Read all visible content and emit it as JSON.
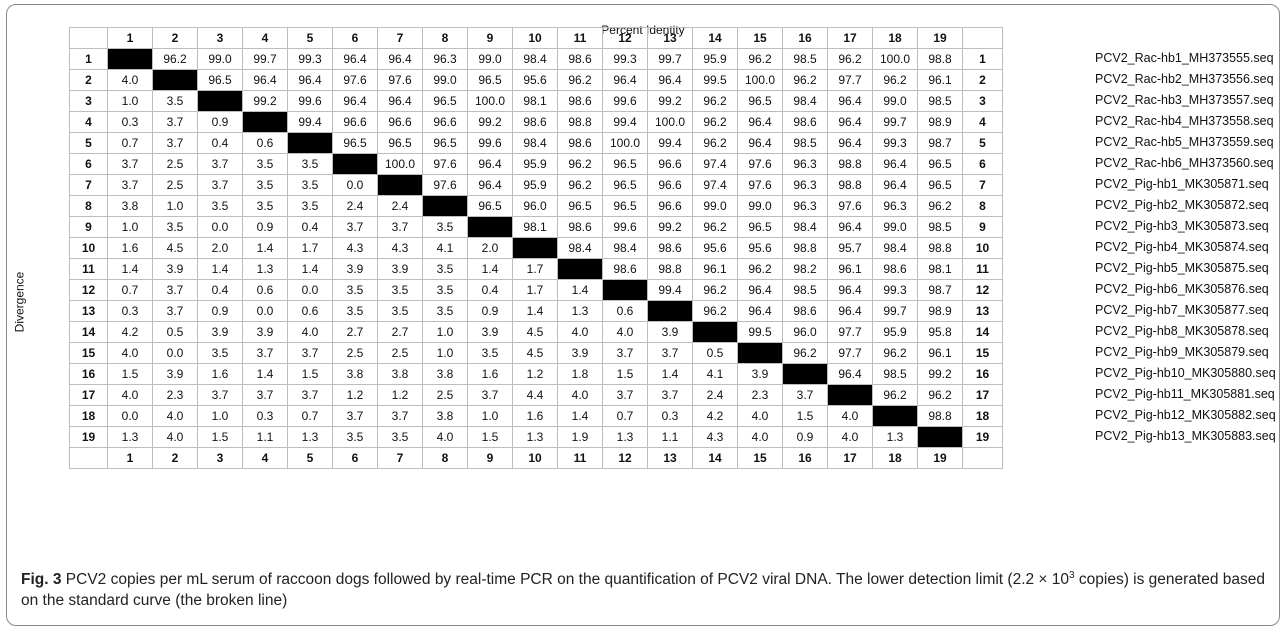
{
  "header": {
    "title": "Percent Identity",
    "ylabel": "Divergence"
  },
  "col_indices": [
    "1",
    "2",
    "3",
    "4",
    "5",
    "6",
    "7",
    "8",
    "9",
    "10",
    "11",
    "12",
    "13",
    "14",
    "15",
    "16",
    "17",
    "18",
    "19"
  ],
  "rows": [
    [
      "",
      "96.2",
      "99.0",
      "99.7",
      "99.3",
      "96.4",
      "96.4",
      "96.3",
      "99.0",
      "98.4",
      "98.6",
      "99.3",
      "99.7",
      "95.9",
      "96.2",
      "98.5",
      "96.2",
      "100.0",
      "98.8"
    ],
    [
      "4.0",
      "",
      "96.5",
      "96.4",
      "96.4",
      "97.6",
      "97.6",
      "99.0",
      "96.5",
      "95.6",
      "96.2",
      "96.4",
      "96.4",
      "99.5",
      "100.0",
      "96.2",
      "97.7",
      "96.2",
      "96.1"
    ],
    [
      "1.0",
      "3.5",
      "",
      "99.2",
      "99.6",
      "96.4",
      "96.4",
      "96.5",
      "100.0",
      "98.1",
      "98.6",
      "99.6",
      "99.2",
      "96.2",
      "96.5",
      "98.4",
      "96.4",
      "99.0",
      "98.5"
    ],
    [
      "0.3",
      "3.7",
      "0.9",
      "",
      "99.4",
      "96.6",
      "96.6",
      "96.6",
      "99.2",
      "98.6",
      "98.8",
      "99.4",
      "100.0",
      "96.2",
      "96.4",
      "98.6",
      "96.4",
      "99.7",
      "98.9"
    ],
    [
      "0.7",
      "3.7",
      "0.4",
      "0.6",
      "",
      "96.5",
      "96.5",
      "96.5",
      "99.6",
      "98.4",
      "98.6",
      "100.0",
      "99.4",
      "96.2",
      "96.4",
      "98.5",
      "96.4",
      "99.3",
      "98.7"
    ],
    [
      "3.7",
      "2.5",
      "3.7",
      "3.5",
      "3.5",
      "",
      "100.0",
      "97.6",
      "96.4",
      "95.9",
      "96.2",
      "96.5",
      "96.6",
      "97.4",
      "97.6",
      "96.3",
      "98.8",
      "96.4",
      "96.5"
    ],
    [
      "3.7",
      "2.5",
      "3.7",
      "3.5",
      "3.5",
      "0.0",
      "",
      "97.6",
      "96.4",
      "95.9",
      "96.2",
      "96.5",
      "96.6",
      "97.4",
      "97.6",
      "96.3",
      "98.8",
      "96.4",
      "96.5"
    ],
    [
      "3.8",
      "1.0",
      "3.5",
      "3.5",
      "3.5",
      "2.4",
      "2.4",
      "",
      "96.5",
      "96.0",
      "96.5",
      "96.5",
      "96.6",
      "99.0",
      "99.0",
      "96.3",
      "97.6",
      "96.3",
      "96.2"
    ],
    [
      "1.0",
      "3.5",
      "0.0",
      "0.9",
      "0.4",
      "3.7",
      "3.7",
      "3.5",
      "",
      "98.1",
      "98.6",
      "99.6",
      "99.2",
      "96.2",
      "96.5",
      "98.4",
      "96.4",
      "99.0",
      "98.5"
    ],
    [
      "1.6",
      "4.5",
      "2.0",
      "1.4",
      "1.7",
      "4.3",
      "4.3",
      "4.1",
      "2.0",
      "",
      "98.4",
      "98.4",
      "98.6",
      "95.6",
      "95.6",
      "98.8",
      "95.7",
      "98.4",
      "98.8"
    ],
    [
      "1.4",
      "3.9",
      "1.4",
      "1.3",
      "1.4",
      "3.9",
      "3.9",
      "3.5",
      "1.4",
      "1.7",
      "",
      "98.6",
      "98.8",
      "96.1",
      "96.2",
      "98.2",
      "96.1",
      "98.6",
      "98.1"
    ],
    [
      "0.7",
      "3.7",
      "0.4",
      "0.6",
      "0.0",
      "3.5",
      "3.5",
      "3.5",
      "0.4",
      "1.7",
      "1.4",
      "",
      "99.4",
      "96.2",
      "96.4",
      "98.5",
      "96.4",
      "99.3",
      "98.7"
    ],
    [
      "0.3",
      "3.7",
      "0.9",
      "0.0",
      "0.6",
      "3.5",
      "3.5",
      "3.5",
      "0.9",
      "1.4",
      "1.3",
      "0.6",
      "",
      "96.2",
      "96.4",
      "98.6",
      "96.4",
      "99.7",
      "98.9"
    ],
    [
      "4.2",
      "0.5",
      "3.9",
      "3.9",
      "4.0",
      "2.7",
      "2.7",
      "1.0",
      "3.9",
      "4.5",
      "4.0",
      "4.0",
      "3.9",
      "",
      "99.5",
      "96.0",
      "97.7",
      "95.9",
      "95.8"
    ],
    [
      "4.0",
      "0.0",
      "3.5",
      "3.7",
      "3.7",
      "2.5",
      "2.5",
      "1.0",
      "3.5",
      "4.5",
      "3.9",
      "3.7",
      "3.7",
      "0.5",
      "",
      "96.2",
      "97.7",
      "96.2",
      "96.1"
    ],
    [
      "1.5",
      "3.9",
      "1.6",
      "1.4",
      "1.5",
      "3.8",
      "3.8",
      "3.8",
      "1.6",
      "1.2",
      "1.8",
      "1.5",
      "1.4",
      "4.1",
      "3.9",
      "",
      "96.4",
      "98.5",
      "99.2"
    ],
    [
      "4.0",
      "2.3",
      "3.7",
      "3.7",
      "3.7",
      "1.2",
      "1.2",
      "2.5",
      "3.7",
      "4.4",
      "4.0",
      "3.7",
      "3.7",
      "2.4",
      "2.3",
      "3.7",
      "",
      "96.2",
      "96.2"
    ],
    [
      "0.0",
      "4.0",
      "1.0",
      "0.3",
      "0.7",
      "3.7",
      "3.7",
      "3.8",
      "1.0",
      "1.6",
      "1.4",
      "0.7",
      "0.3",
      "4.2",
      "4.0",
      "1.5",
      "4.0",
      "",
      "98.8"
    ],
    [
      "1.3",
      "4.0",
      "1.5",
      "1.1",
      "1.3",
      "3.5",
      "3.5",
      "4.0",
      "1.5",
      "1.3",
      "1.9",
      "1.3",
      "1.1",
      "4.3",
      "4.0",
      "0.9",
      "4.0",
      "1.3",
      ""
    ]
  ],
  "sequence_labels": [
    "PCV2_Rac-hb1_MH373555.seq",
    "PCV2_Rac-hb2_MH373556.seq",
    "PCV2_Rac-hb3_MH373557.seq",
    "PCV2_Rac-hb4_MH373558.seq",
    "PCV2_Rac-hb5_MH373559.seq",
    "PCV2_Rac-hb6_MH373560.seq",
    "PCV2_Pig-hb1_MK305871.seq",
    "PCV2_Pig-hb2_MK305872.seq",
    "PCV2_Pig-hb3_MK305873.seq",
    "PCV2_Pig-hb4_MK305874.seq",
    "PCV2_Pig-hb5_MK305875.seq",
    "PCV2_Pig-hb6_MK305876.seq",
    "PCV2_Pig-hb7_MK305877.seq",
    "PCV2_Pig-hb8_MK305878.seq",
    "PCV2_Pig-hb9_MK305879.seq",
    "PCV2_Pig-hb10_MK305880.seq",
    "PCV2_Pig-hb11_MK305881.seq",
    "PCV2_Pig-hb12_MK305882.seq",
    "PCV2_Pig-hb13_MK305883.seq"
  ],
  "caption": {
    "label": "Fig. 3",
    "text_1": " PCV2 copies per mL serum of raccoon dogs followed by real-time PCR on the quantification of PCV2 viral DNA. The lower detection limit (2.2 × 10",
    "superscript": "3",
    "text_2": " copies) is generated based on the standard curve (the broken line)"
  }
}
